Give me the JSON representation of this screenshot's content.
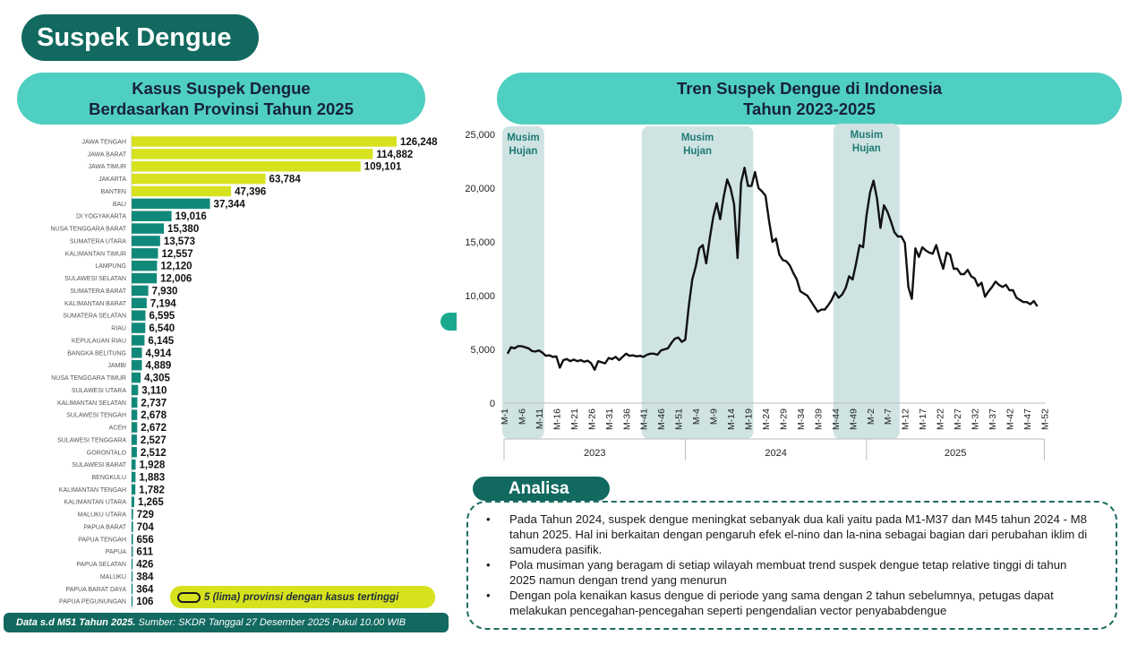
{
  "page_title": "Suspek Dengue",
  "left_header": {
    "line1": "Kasus Suspek Dengue",
    "line2": "Berdasarkan Provinsi Tahun 2025"
  },
  "right_header": {
    "line1": "Tren Suspek Dengue di Indonesia",
    "line2": "Tahun 2023-2025"
  },
  "legend_text": "5 (lima) provinsi dengan kasus tertinggi",
  "footer": {
    "bold": "Data s.d M51 Tahun 2025.",
    "rest": " Sumber: SKDR Tanggal 27 Desember 2025 Pukul 10.00 WIB"
  },
  "analysis": {
    "label": "Analisa",
    "bullets": [
      "Pada Tahun 2024, suspek dengue meningkat sebanyak dua kali yaitu pada M1-M37 dan M45 tahun 2024 - M8 tahun 2025. Hal ini berkaitan dengan pengaruh efek el-nino dan la-nina sebagai bagian dari perubahan iklim di samudera pasifik.",
      "Pola musiman yang beragam di setiap wilayah membuat trend suspek dengue tetap relative tinggi di tahun 2025 namun dengan trend yang menurun",
      "Dengan pola kenaikan kasus dengue di periode yang sama dengan 2 tahun sebelumnya, petugas dapat melakukan pencegahan-pencegahan seperti pengendalian vector penyababdengue"
    ]
  },
  "colors": {
    "dark_teal": "#11695f",
    "header_teal": "#4fcfc2",
    "top5_bar": "#d7e21e",
    "other_bar": "#11897a",
    "season_band": "#cfe3e3",
    "line": "#111111"
  },
  "chart_data": [
    {
      "type": "bar",
      "orientation": "horizontal",
      "highlight_top": 5,
      "categories": [
        "JAWA TENGAH",
        "JAWA BARAT",
        "JAWA TIMUR",
        "JAKARTA",
        "BANTEN",
        "BALI",
        "DI YOGYAKARTA",
        "NUSA TENGGARA BARAT",
        "SUMATERA UTARA",
        "KALIMANTAN TIMUR",
        "LAMPUNG",
        "SULAWESI SELATAN",
        "SUMATERA BARAT",
        "KALIMANTAN BARAT",
        "SUMATERA SELATAN",
        "RIAU",
        "KEPULAUAN RIAU",
        "BANGKA BELITUNG",
        "JAMBI",
        "NUSA TENGGARA TIMUR",
        "SULAWESI UTARA",
        "KALIMANTAN SELATAN",
        "SULAWESI TENGAH",
        "ACEH",
        "SULAWESI TENGGARA",
        "GORONTALO",
        "SULAWESI BARAT",
        "BENGKULU",
        "KALIMANTAN TENGAH",
        "KALIMANTAN UTARA",
        "MALUKU UTARA",
        "PAPUA BARAT",
        "PAPUA TENGAH",
        "PAPUA",
        "PAPUA SELATAN",
        "MALUKU",
        "PAPUA BARAT DAYA",
        "PAPUA PEGUNUNGAN"
      ],
      "values": [
        126248,
        114882,
        109101,
        63784,
        47396,
        37344,
        19016,
        15380,
        13573,
        12557,
        12120,
        12006,
        7930,
        7194,
        6595,
        6540,
        6145,
        4914,
        4889,
        4305,
        3110,
        2737,
        2678,
        2672,
        2527,
        2512,
        1928,
        1883,
        1782,
        1265,
        729,
        704,
        656,
        611,
        426,
        384,
        364,
        106
      ],
      "labels": [
        "126,248",
        "114,882",
        "109,101",
        "63,784",
        "47,396",
        "37,344",
        "19,016",
        "15,380",
        "13,573",
        "12,557",
        "12,120",
        "12,006",
        "7,930",
        "7,194",
        "6,595",
        "6,540",
        "6,145",
        "4,914",
        "4,889",
        "4,305",
        "3,110",
        "2,737",
        "2,678",
        "2,672",
        "2,527",
        "2,512",
        "1,928",
        "1,883",
        "1,782",
        "1,265",
        "729",
        "704",
        "656",
        "611",
        "426",
        "384",
        "364",
        "106"
      ]
    },
    {
      "type": "line",
      "ylim": [
        0,
        25000
      ],
      "y_ticks": [
        0,
        5000,
        10000,
        15000,
        20000,
        25000
      ],
      "y_tick_labels": [
        "0",
        "5,000",
        "10,000",
        "15,000",
        "20,000",
        "25,000"
      ],
      "x_tick_labels": [
        "M-1",
        "M-6",
        "M-11",
        "M-16",
        "M-21",
        "M-26",
        "M-31",
        "M-36",
        "M-41",
        "M-46",
        "M-51",
        "M-4",
        "M-9",
        "M-14",
        "M-19",
        "M-24",
        "M-29",
        "M-34",
        "M-39",
        "M-44",
        "M-49",
        "M-2",
        "M-7",
        "M-12",
        "M-17",
        "M-22",
        "M-27",
        "M-32",
        "M-37",
        "M-42",
        "M-47",
        "M-52"
      ],
      "years": [
        "2023",
        "2024",
        "2025"
      ],
      "season_label": [
        "Musim",
        "Hujan"
      ],
      "seasons": [
        {
          "year": "2023",
          "start_week": 1,
          "end_week": 11
        },
        {
          "year": "2024",
          "start_week": 41,
          "end_week": 19
        },
        {
          "year": "2024",
          "start_week": 44,
          "end_week": 8
        }
      ],
      "series": [
        {
          "values": [
            4600,
            5200,
            5100,
            5300,
            5300,
            5200,
            5100,
            4850,
            4800,
            4900,
            4700,
            4400,
            4450,
            4300,
            4350,
            3300,
            4000,
            4100,
            3900,
            4050,
            3900,
            4000,
            3850,
            3950,
            3700,
            3100,
            3900,
            3800,
            3700,
            4200,
            4100,
            4300,
            4000,
            4300,
            4600,
            4400,
            4450,
            4350,
            4400,
            4300,
            4500,
            4600,
            4600,
            4500,
            4900,
            5000,
            5100,
            5600,
            6000,
            6100,
            5700,
            5900,
            9000,
            11500,
            12700,
            14400,
            14700,
            13000,
            15300,
            17300,
            18600,
            17100,
            19200,
            20800,
            20000,
            18500,
            13500,
            20500,
            21900,
            20200,
            20200,
            21500,
            20000,
            19700,
            19300,
            17000,
            15000,
            15300,
            13800,
            13300,
            13200,
            12800,
            12100,
            11500,
            10400,
            10200,
            10000,
            9500,
            9000,
            8500,
            8700,
            8700,
            9100,
            9600,
            10300,
            9800,
            10100,
            10700,
            11800,
            11500,
            13000,
            14700,
            14500,
            17500,
            19600,
            20700,
            19000,
            16300,
            18400,
            17800,
            16900,
            15900,
            15500,
            15500,
            14900,
            10800,
            9700,
            14400,
            13600,
            14500,
            14200,
            14000,
            13900,
            14700,
            13500,
            12500,
            14000,
            13800,
            12500,
            12500,
            12000,
            12000,
            12400,
            11800,
            11600,
            10900,
            11200,
            9900,
            10400,
            10800,
            11300,
            11000,
            10800,
            11000,
            10500,
            10500,
            9800,
            9600,
            9400,
            9400,
            9200,
            9500,
            9000
          ]
        }
      ]
    }
  ]
}
